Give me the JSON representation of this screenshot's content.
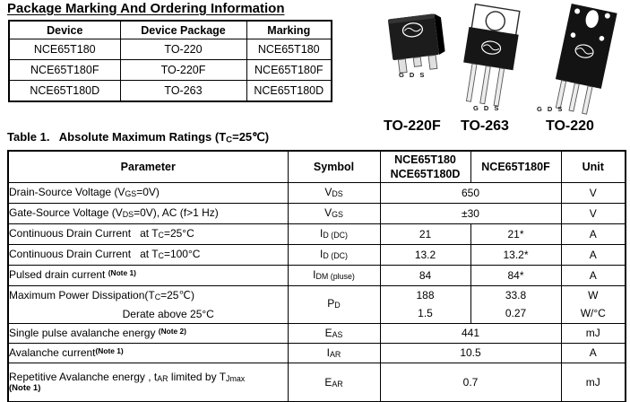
{
  "header": {
    "title": "Package Marking And Ordering Information"
  },
  "ordering_table": {
    "headers": [
      "Device",
      "Device Package",
      "Marking"
    ],
    "rows": [
      [
        "NCE65T180",
        "TO-220",
        "NCE65T180"
      ],
      [
        "NCE65T180F",
        "TO-220F",
        "NCE65T180F"
      ],
      [
        "NCE65T180D",
        "TO-263",
        "NCE65T180D"
      ]
    ]
  },
  "packages": {
    "pin_labels": "G D S",
    "items": [
      {
        "name": "TO-263"
      },
      {
        "name": "TO-220"
      },
      {
        "name": "TO-220F"
      }
    ]
  },
  "ratings": {
    "heading": [
      {
        "t": "Table 1.   Absolute Maximum Ratings (T"
      },
      {
        "t": "C",
        "s": "sub"
      },
      {
        "t": "=25℃)"
      }
    ],
    "columns": {
      "parameter": "Parameter",
      "symbol": "Symbol",
      "device_a_line1": "NCE65T180",
      "device_a_line2": "NCE65T180D",
      "device_b": "NCE65T180F",
      "unit": "Unit"
    },
    "rows": [
      {
        "param": [
          {
            "t": "Drain-Source Voltage (V"
          },
          {
            "t": "GS",
            "s": "sub"
          },
          {
            "t": "=0V)"
          }
        ],
        "symbol": [
          {
            "t": "V"
          },
          {
            "t": "DS",
            "s": "sub"
          }
        ],
        "value_span": "650",
        "unit": "V"
      },
      {
        "param": [
          {
            "t": "Gate-Source Voltage (V"
          },
          {
            "t": "DS",
            "s": "sub"
          },
          {
            "t": "=0V), AC (f>1 Hz)"
          }
        ],
        "symbol": [
          {
            "t": "V"
          },
          {
            "t": "GS",
            "s": "sub"
          }
        ],
        "value_span": "±30",
        "unit": "V"
      },
      {
        "param": [
          {
            "t": "Continuous Drain Current   at T"
          },
          {
            "t": "C",
            "s": "sub"
          },
          {
            "t": "=25°C"
          }
        ],
        "symbol": [
          {
            "t": "I"
          },
          {
            "t": "D (DC)",
            "s": "sub"
          }
        ],
        "value_a": "21",
        "value_b": "21*",
        "unit": "A"
      },
      {
        "param": [
          {
            "t": "Continuous Drain Current   at T"
          },
          {
            "t": "C",
            "s": "sub"
          },
          {
            "t": "=100°C"
          }
        ],
        "symbol": [
          {
            "t": "I"
          },
          {
            "t": "D (DC)",
            "s": "sub"
          }
        ],
        "value_a": "13.2",
        "value_b": "13.2*",
        "unit": "A"
      },
      {
        "param": [
          {
            "t": "Pulsed drain current "
          },
          {
            "t": "(Note 1)",
            "s": "note"
          }
        ],
        "symbol": [
          {
            "t": "I"
          },
          {
            "t": "DM (pluse)",
            "s": "sub"
          }
        ],
        "value_a": "84",
        "value_b": "84*",
        "unit": "A"
      },
      {
        "param_line1": [
          {
            "t": "Maximum Power Dissipation(T"
          },
          {
            "t": "C",
            "s": "sub"
          },
          {
            "t": "=25℃)"
          }
        ],
        "param_line2": "Derate above 25°C",
        "symbol": [
          {
            "t": "P"
          },
          {
            "t": "D",
            "s": "sub"
          }
        ],
        "value_a_line1": "188",
        "value_a_line2": "1.5",
        "value_b_line1": "33.8",
        "value_b_line2": "0.27",
        "unit_line1": "W",
        "unit_line2": "W/°C"
      },
      {
        "param": [
          {
            "t": "Single pulse avalanche energy "
          },
          {
            "t": "(Note 2)",
            "s": "note"
          }
        ],
        "symbol": [
          {
            "t": "E"
          },
          {
            "t": "AS",
            "s": "sub"
          }
        ],
        "value_span": "441",
        "unit": "mJ"
      },
      {
        "param": [
          {
            "t": "Avalanche current"
          },
          {
            "t": "(Note 1)",
            "s": "note"
          }
        ],
        "symbol": [
          {
            "t": "I"
          },
          {
            "t": "AR",
            "s": "sub"
          }
        ],
        "value_span": "10.5",
        "unit": "A"
      },
      {
        "param_line1": [
          {
            "t": "Repetitive Avalanche energy , t"
          },
          {
            "t": "AR",
            "s": "sub"
          },
          {
            "t": " limited by T"
          },
          {
            "t": "Jmax",
            "s": "sub"
          }
        ],
        "param_line2": "(Note 1)",
        "symbol": [
          {
            "t": "E"
          },
          {
            "t": "AR",
            "s": "sub"
          }
        ],
        "value_span": "0.7",
        "unit": "mJ"
      }
    ]
  }
}
